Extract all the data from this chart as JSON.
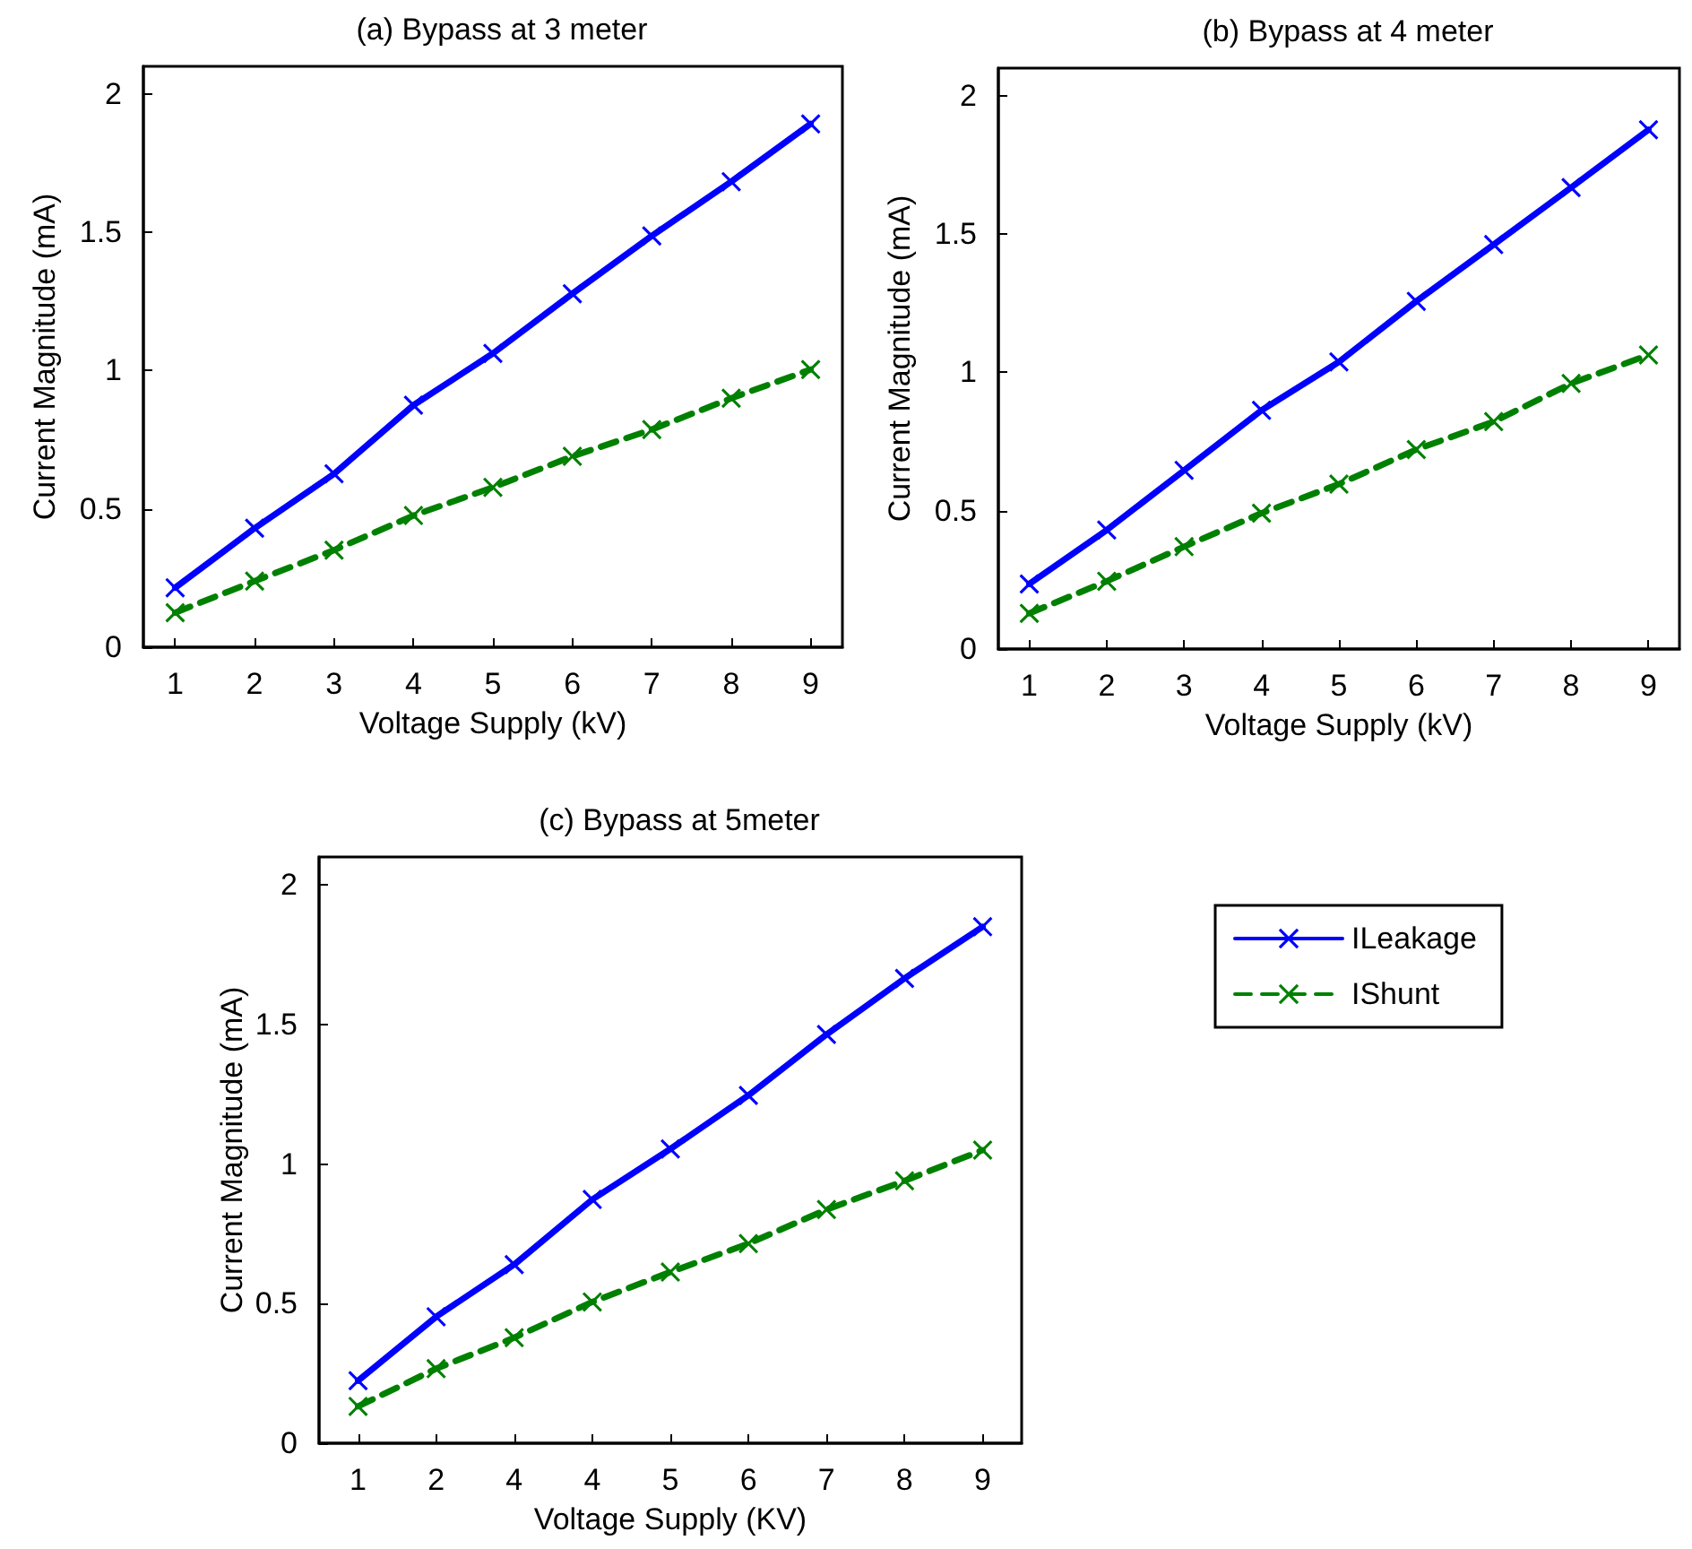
{
  "chart_data": [
    {
      "type": "line",
      "title": "(a) Bypass at 3 meter",
      "xlabel": "Voltage Supply (kV)",
      "ylabel": "Current Magnitude (mA)",
      "x": [
        1,
        2,
        3,
        4,
        5,
        6,
        7,
        8,
        9
      ],
      "xlim": [
        0.6,
        9.4
      ],
      "ylim": [
        0,
        2.1
      ],
      "xticks": [
        1,
        2,
        3,
        4,
        5,
        6,
        7,
        8,
        9
      ],
      "yticks": [
        0,
        0.5,
        1,
        1.5,
        2
      ],
      "marker": "cross",
      "grid": false,
      "legend": false,
      "series": [
        {
          "color": "#0000ff",
          "line_style": "solid",
          "values": [
            0.215,
            0.43,
            0.627,
            0.875,
            1.062,
            1.278,
            1.487,
            1.683,
            1.892
          ]
        },
        {
          "color": "#008000",
          "line_style": "dashed",
          "values": [
            0.125,
            0.239,
            0.351,
            0.476,
            0.578,
            0.69,
            0.787,
            0.9,
            1.004
          ]
        }
      ]
    },
    {
      "type": "line",
      "title": "(b) Bypass at 4 meter",
      "xlabel": "Voltage Supply (kV)",
      "ylabel": "Current Magnitude (mA)",
      "x": [
        1,
        2,
        3,
        4,
        5,
        6,
        7,
        8,
        9
      ],
      "xlim": [
        0.6,
        9.4
      ],
      "ylim": [
        0,
        2.1
      ],
      "xticks": [
        1,
        2,
        3,
        4,
        5,
        6,
        7,
        8,
        9
      ],
      "yticks": [
        0,
        0.5,
        1,
        1.5,
        2
      ],
      "marker": "cross",
      "grid": false,
      "legend": false,
      "series": [
        {
          "color": "#0000ff",
          "line_style": "solid",
          "values": [
            0.235,
            0.43,
            0.646,
            0.863,
            1.038,
            1.257,
            1.462,
            1.668,
            1.877
          ]
        },
        {
          "color": "#008000",
          "line_style": "dashed",
          "values": [
            0.129,
            0.245,
            0.37,
            0.491,
            0.596,
            0.721,
            0.822,
            0.96,
            1.063
          ]
        }
      ]
    },
    {
      "type": "line",
      "title": "(c) Bypass at 5meter",
      "xlabel": "Voltage Supply (KV)",
      "ylabel": "Current Magnitude (mA)",
      "categories": [
        "1",
        "2",
        "4",
        "4",
        "5",
        "6",
        "7",
        "8",
        "9"
      ],
      "ylim": [
        0,
        2.1
      ],
      "yticks": [
        0,
        0.5,
        1,
        1.5,
        2
      ],
      "marker": "cross",
      "grid": false,
      "legend": "right",
      "series": [
        {
          "name": "ILeakage",
          "color": "#0000ff",
          "line_style": "solid",
          "values": [
            0.224,
            0.453,
            0.64,
            0.873,
            1.054,
            1.246,
            1.464,
            1.665,
            1.85
          ]
        },
        {
          "name": "IShunt",
          "color": "#008000",
          "line_style": "dashed",
          "values": [
            0.132,
            0.267,
            0.378,
            0.506,
            0.613,
            0.715,
            0.837,
            0.94,
            1.05
          ]
        }
      ]
    }
  ]
}
